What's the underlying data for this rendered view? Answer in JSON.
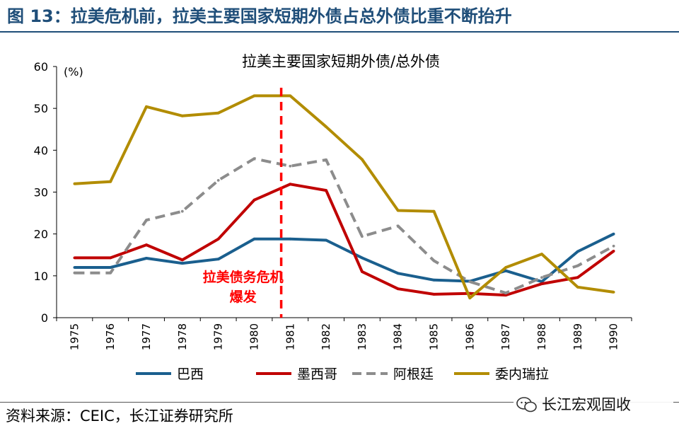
{
  "figure": {
    "title": "图 13：拉美危机前，拉美主要国家短期外债占总外债比重不断抬升",
    "source": "资料来源：CEIC，长江证券研究所",
    "watermark": "长江宏观固收"
  },
  "chart_data": {
    "type": "line",
    "title": "拉美主要国家短期外债/总外债",
    "ylabel": "(%)",
    "xlabel": "",
    "x": [
      "1975",
      "1976",
      "1977",
      "1978",
      "1979",
      "1980",
      "1981",
      "1982",
      "1983",
      "1984",
      "1985",
      "1986",
      "1987",
      "1988",
      "1989",
      "1990"
    ],
    "ylim": [
      0,
      60
    ],
    "yticks": [
      0,
      10,
      20,
      30,
      40,
      50,
      60
    ],
    "grid": false,
    "legend_position": "bottom",
    "series": [
      {
        "name": "巴西",
        "color": "#1a5f8e",
        "dash": "solid",
        "values": [
          12.0,
          12.0,
          14.2,
          13.0,
          14.0,
          18.8,
          18.8,
          18.5,
          14.3,
          10.6,
          9.0,
          8.7,
          11.2,
          8.6,
          15.8,
          20.0
        ]
      },
      {
        "name": "墨西哥",
        "color": "#c00000",
        "dash": "solid",
        "values": [
          14.3,
          14.3,
          17.4,
          13.8,
          18.8,
          28.1,
          31.9,
          30.4,
          11.0,
          6.9,
          5.6,
          5.8,
          5.4,
          8.1,
          9.6,
          15.9
        ]
      },
      {
        "name": "阿根廷",
        "color": "#8c8c8c",
        "dash": "dashed",
        "values": [
          10.7,
          10.7,
          23.3,
          25.4,
          32.8,
          38.0,
          36.2,
          37.7,
          19.4,
          21.9,
          13.6,
          8.6,
          5.9,
          9.6,
          12.4,
          17.1
        ]
      },
      {
        "name": "委内瑞拉",
        "color": "#b28c00",
        "dash": "solid",
        "values": [
          32.0,
          32.5,
          50.4,
          48.2,
          48.9,
          53.0,
          53.0,
          45.6,
          37.8,
          25.6,
          25.4,
          4.7,
          12.0,
          15.2,
          7.3,
          6.1
        ]
      }
    ],
    "annotations": [
      {
        "type": "vline",
        "x": 1980.75,
        "color": "#ff0000",
        "dash": "dashed",
        "label_lines": [
          "拉美债务危机",
          "爆发"
        ],
        "label_color": "#ff0000"
      }
    ]
  }
}
